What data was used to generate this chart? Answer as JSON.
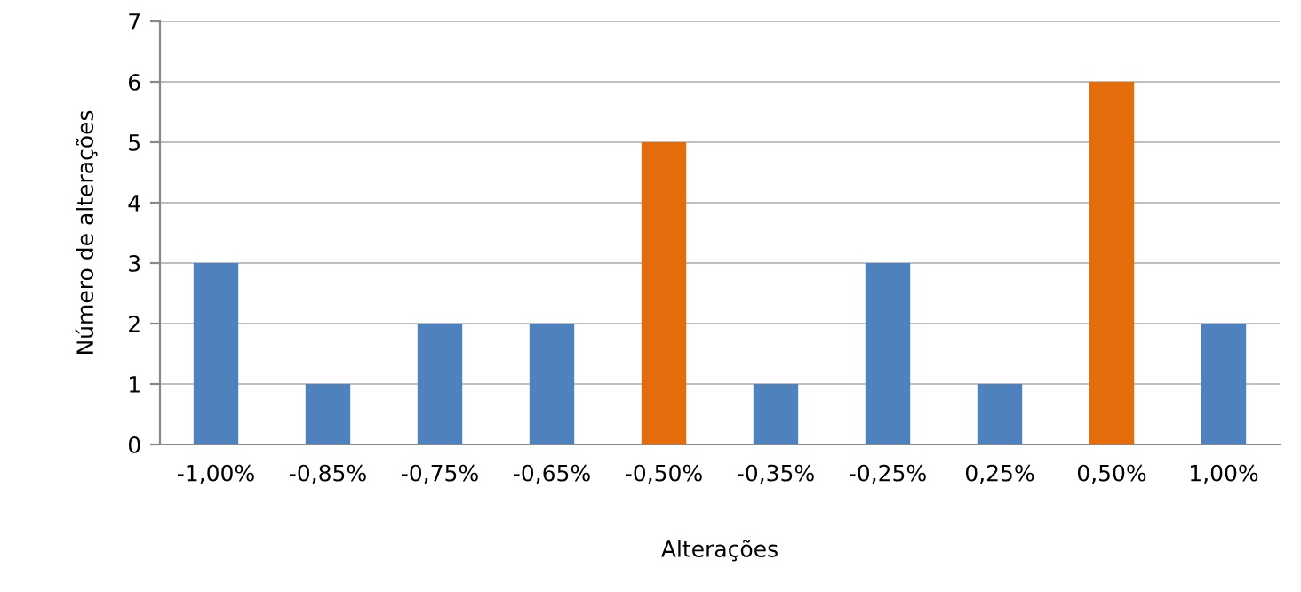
{
  "chart_data": {
    "type": "bar",
    "xlabel": "Alterações",
    "ylabel": "Número de alterações",
    "categories": [
      "-1,00%",
      "-0,85%",
      "-0,75%",
      "-0,65%",
      "-0,50%",
      "-0,35%",
      "-0,25%",
      "0,25%",
      "0,50%",
      "1,00%"
    ],
    "values": [
      3,
      1,
      2,
      2,
      5,
      1,
      3,
      1,
      6,
      2
    ],
    "colors": [
      "#4f81bd",
      "#4f81bd",
      "#4f81bd",
      "#4f81bd",
      "#e46c0a",
      "#4f81bd",
      "#4f81bd",
      "#4f81bd",
      "#e46c0a",
      "#4f81bd"
    ],
    "ylim": [
      0,
      7
    ],
    "yticks": [
      0,
      1,
      2,
      3,
      4,
      5,
      6,
      7
    ],
    "grid": "y"
  }
}
